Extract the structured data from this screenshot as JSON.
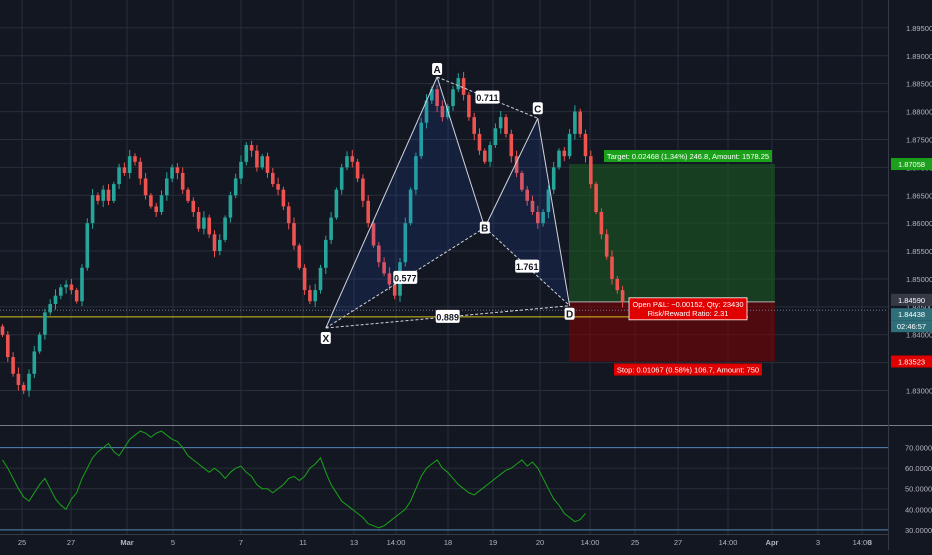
{
  "theme": {
    "background": "#131722",
    "grid": "#2a2e39",
    "bull": "#26a69a",
    "bear": "#ef5350",
    "pattern_line": "#d1d4dc",
    "pattern_fill": "#2962ff",
    "rsi_line": "#19a319",
    "target_zone": "#1b5e20",
    "stop_zone": "#7f0000",
    "target_badge": "#1aa01a",
    "stop_badge": "#e00000",
    "price_line": "#d8c21a",
    "scale_text": "#b2b5be"
  },
  "chart_data": [
    {
      "type": "candlestick",
      "title": "",
      "ylim": [
        1.824,
        1.9
      ],
      "y_ticks": [
        "1.89500",
        "1.89000",
        "1.88500",
        "1.88000",
        "1.87500",
        "1.87000",
        "1.86500",
        "1.86000",
        "1.85500",
        "1.85000",
        "1.84500",
        "1.84000",
        "1.83500",
        "1.83000"
      ],
      "x_labels": [
        "25",
        "27",
        "Mar",
        "5",
        "7",
        "11",
        "13",
        "14:00",
        "18",
        "19",
        "20",
        "14:00",
        "25",
        "27",
        "14:00",
        "Apr",
        "3",
        "14:00",
        "8"
      ],
      "close_series": [
        1.84,
        1.836,
        1.833,
        1.831,
        1.83,
        1.833,
        1.837,
        1.84,
        1.844,
        1.8455,
        1.847,
        1.8485,
        1.849,
        1.848,
        1.846,
        1.852,
        1.86,
        1.865,
        1.864,
        1.866,
        1.864,
        1.867,
        1.87,
        1.869,
        1.872,
        1.871,
        1.868,
        1.865,
        1.863,
        1.862,
        1.865,
        1.868,
        1.87,
        1.869,
        1.866,
        1.864,
        1.862,
        1.859,
        1.861,
        1.858,
        1.855,
        1.857,
        1.861,
        1.865,
        1.868,
        1.871,
        1.874,
        1.873,
        1.87,
        1.872,
        1.869,
        1.867,
        1.866,
        1.863,
        1.86,
        1.856,
        1.852,
        1.848,
        1.846,
        1.848,
        1.852,
        1.857,
        1.861,
        1.866,
        1.87,
        1.872,
        1.871,
        1.868,
        1.864,
        1.86,
        1.856,
        1.853,
        1.851,
        1.849,
        1.847,
        1.853,
        1.86,
        1.866,
        1.872,
        1.878,
        1.882,
        1.884,
        1.881,
        1.879,
        1.881,
        1.884,
        1.886,
        1.883,
        1.879,
        1.876,
        1.873,
        1.871,
        1.874,
        1.877,
        1.879,
        1.876,
        1.872,
        1.869,
        1.866,
        1.864,
        1.862,
        1.86,
        1.862,
        1.866,
        1.87,
        1.873,
        1.872,
        1.876,
        1.88,
        1.876,
        1.872,
        1.867,
        1.862,
        1.858,
        1.854,
        1.85,
        1.848,
        1.846
      ],
      "drawing": {
        "pattern_points": [
          {
            "label": "X",
            "index": 61
          },
          {
            "label": "A",
            "index": 82
          },
          {
            "label": "B",
            "index": 91
          },
          {
            "label": "C",
            "index": 101
          },
          {
            "label": "D",
            "index": 107
          }
        ],
        "pattern_prices": {
          "X": 1.8412,
          "A": 1.8862,
          "B": 1.8592,
          "C": 1.8788,
          "D": 1.8452
        },
        "ratios": [
          {
            "text": "0.711",
            "between": [
              "A",
              "C"
            ]
          },
          {
            "text": "0.577",
            "between": [
              "X",
              "B"
            ]
          },
          {
            "text": "1.761",
            "between": [
              "B",
              "D"
            ]
          },
          {
            "text": "0.889",
            "between": [
              "X",
              "D"
            ]
          }
        ],
        "target_price": 1.8706,
        "entry_price": 1.8459,
        "stop_price": 1.8352,
        "current_price": 1.8444,
        "horizontal_line_price": 1.8432,
        "target_text": "Target: 0.02468 (1.34%) 246.8, Amount: 1578.25",
        "stop_text": "Stop: 0.01067 (0.58%) 106.7, Amount: 750",
        "pnl_text": "Open P&L: −0.00152, Qty: 23430",
        "rr_text": "Risk/Reward Ratio: 2.31"
      },
      "price_labels": {
        "target": "1.87058",
        "entry": "1.84590",
        "current": "1.84438",
        "countdown": "02:46:57",
        "stop": "1.83523"
      }
    },
    {
      "type": "line",
      "title": "",
      "ylim": [
        28,
        80
      ],
      "y_ticks": [
        "70.0000",
        "60.0000",
        "50.0000",
        "40.0000",
        "30.0000"
      ],
      "hlines": [
        70,
        30
      ],
      "rsi_values": [
        64,
        60,
        55,
        50,
        46,
        44,
        48,
        52,
        55,
        50,
        45,
        42,
        40,
        45,
        48,
        55,
        60,
        65,
        68,
        70,
        72,
        68,
        66,
        70,
        74,
        76,
        78,
        77,
        75,
        77,
        78,
        76,
        74,
        73,
        70,
        66,
        64,
        62,
        60,
        58,
        60,
        58,
        55,
        58,
        60,
        61,
        58,
        56,
        52,
        50,
        50,
        48,
        50,
        52,
        55,
        56,
        54,
        56,
        60,
        62,
        65,
        58,
        52,
        48,
        44,
        42,
        40,
        38,
        36,
        33,
        32,
        31,
        32,
        34,
        36,
        38,
        40,
        44,
        50,
        56,
        60,
        62,
        64,
        60,
        58,
        55,
        52,
        50,
        48,
        47,
        49,
        51,
        53,
        55,
        57,
        59,
        60,
        62,
        64,
        61,
        63,
        60,
        55,
        50,
        45,
        42,
        38,
        36,
        34,
        35,
        38
      ]
    }
  ]
}
